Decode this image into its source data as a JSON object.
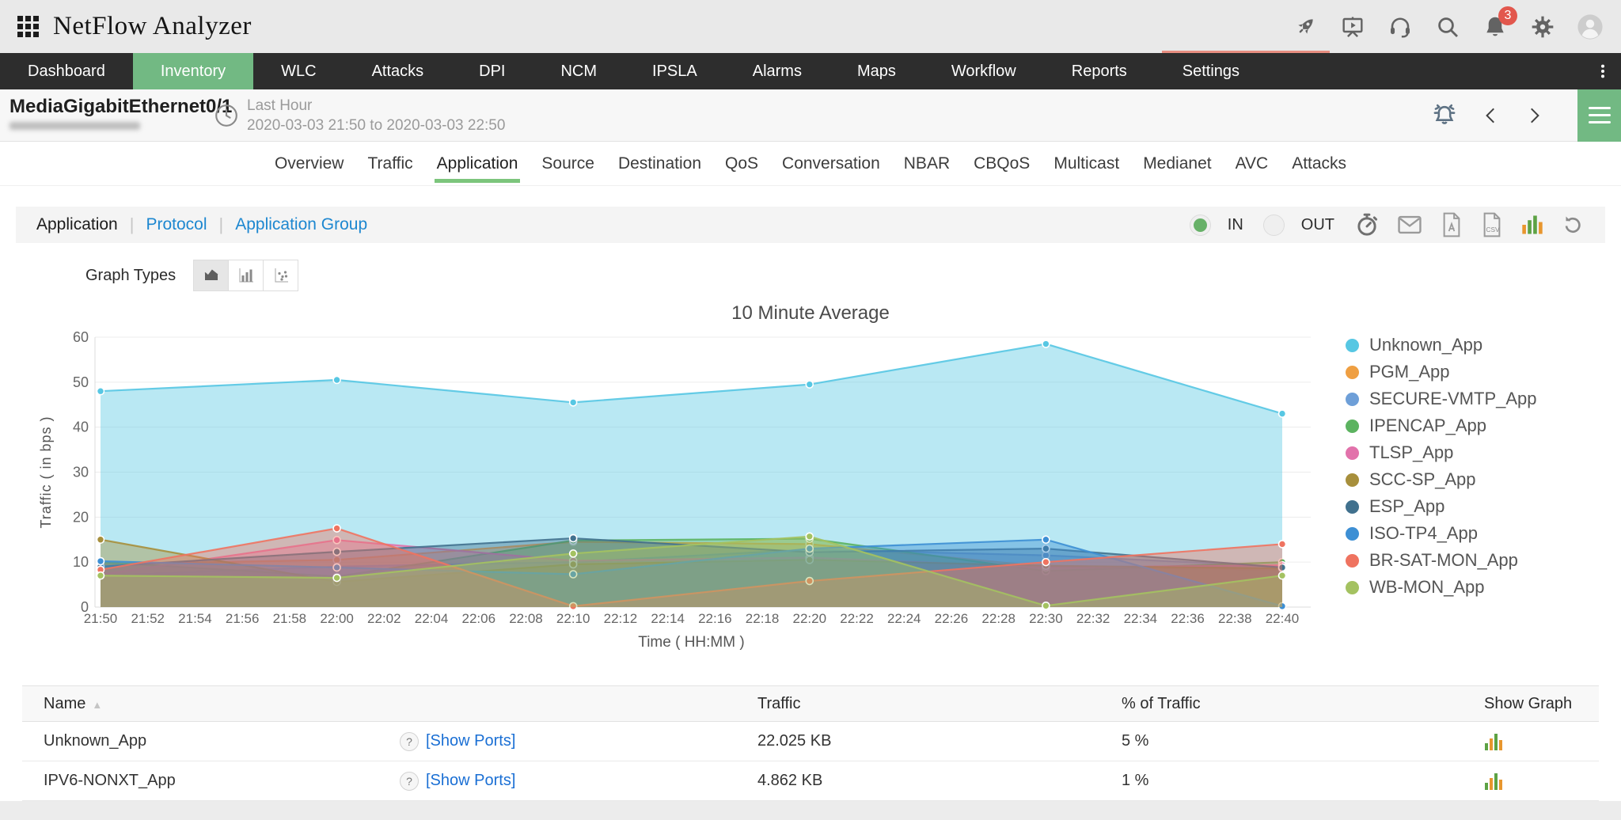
{
  "colors": {
    "accent_green": "#72b983",
    "underline_green": "#7cc57c",
    "link_blue": "#1d87d0",
    "badge_red": "#e2574d",
    "navbar_bg": "#2d2d2d"
  },
  "topbar": {
    "title": "NetFlow Analyzer",
    "notification_count": "3",
    "icons": [
      "apps-grid-icon",
      "rocket-icon",
      "presentation-icon",
      "support-headset-icon",
      "search-icon",
      "notifications-bell-icon",
      "settings-gear-icon",
      "user-avatar-icon"
    ]
  },
  "navbar": {
    "items": [
      "Dashboard",
      "Inventory",
      "WLC",
      "Attacks",
      "DPI",
      "NCM",
      "IPSLA",
      "Alarms",
      "Maps",
      "Workflow",
      "Reports",
      "Settings"
    ],
    "active": "Inventory",
    "more_icon": "kebab-menu-icon"
  },
  "interface_bar": {
    "title": "MediaGigabitEthernet0/1",
    "time_preset": "Last Hour",
    "time_range": "2020-03-03 21:50 to 2020-03-03 22:50",
    "icons": [
      "clock-icon",
      "alarm-ring-icon",
      "chevron-left-icon",
      "chevron-right-icon",
      "hamburger-menu-icon"
    ]
  },
  "subtabs": {
    "items": [
      "Overview",
      "Traffic",
      "Application",
      "Source",
      "Destination",
      "QoS",
      "Conversation",
      "NBAR",
      "CBQoS",
      "Multicast",
      "Medianet",
      "AVC",
      "Attacks"
    ],
    "active": "Application"
  },
  "filter_bar": {
    "views": [
      "Application",
      "Protocol",
      "Application Group"
    ],
    "active_view": "Application",
    "direction_in_label": "IN",
    "direction_out_label": "OUT",
    "selected_direction": "IN",
    "action_icons": [
      "timer-icon",
      "email-icon",
      "pdf-export-icon",
      "csv-export-icon",
      "chart-view-icon",
      "refresh-icon"
    ]
  },
  "graph_types": {
    "label": "Graph Types",
    "options": [
      "area-chart-icon",
      "bar-chart-icon",
      "scatter-chart-icon"
    ],
    "active_option": "area-chart-icon"
  },
  "chart_data": {
    "type": "area",
    "title": "10 Minute Average",
    "xlabel": "Time ( HH:MM )",
    "ylabel": "Traffic ( in bps )",
    "ylim": [
      0,
      60
    ],
    "yticks": [
      0,
      10,
      20,
      30,
      40,
      50,
      60
    ],
    "grid": true,
    "legend_position": "right",
    "xticks": [
      "21:50",
      "21:52",
      "21:54",
      "21:56",
      "21:58",
      "22:00",
      "22:02",
      "22:04",
      "22:06",
      "22:08",
      "22:10",
      "22:12",
      "22:14",
      "22:16",
      "22:18",
      "22:20",
      "22:22",
      "22:24",
      "22:26",
      "22:28",
      "22:30",
      "22:32",
      "22:34",
      "22:36",
      "22:38",
      "22:40"
    ],
    "x": [
      "21:50",
      "22:00",
      "22:10",
      "22:20",
      "22:30",
      "22:40"
    ],
    "series": [
      {
        "name": "Unknown_App",
        "color": "#57c7e3",
        "values": [
          48,
          50.5,
          45.5,
          49.5,
          58.5,
          43
        ]
      },
      {
        "name": "PGM_App",
        "color": "#ef9f42",
        "values": [
          9.5,
          10.5,
          14.5,
          14,
          9,
          8.3
        ]
      },
      {
        "name": "SECURE-VMTP_App",
        "color": "#6e9fd8",
        "values": [
          7,
          9,
          10,
          12.8,
          11.5,
          9
        ]
      },
      {
        "name": "IPENCAP_App",
        "color": "#5cb360",
        "values": [
          10,
          6.8,
          14.8,
          15.2,
          8,
          10
        ]
      },
      {
        "name": "TLSP_App",
        "color": "#e272ab",
        "values": [
          7.2,
          14.9,
          10.3,
          11,
          8.8,
          9.3
        ]
      },
      {
        "name": "SCC-SP_App",
        "color": "#a78f3c",
        "values": [
          15,
          5.6,
          9.5,
          10.5,
          9.2,
          8.6
        ]
      },
      {
        "name": "ESP_App",
        "color": "#41718e",
        "values": [
          9,
          12.3,
          15.3,
          12.2,
          13,
          8.8
        ]
      },
      {
        "name": "ISO-TP4_App",
        "color": "#3d8fd4",
        "values": [
          10.2,
          8.8,
          7.3,
          13,
          15,
          0.2
        ]
      },
      {
        "name": "BR-SAT-MON_App",
        "color": "#ef7360",
        "values": [
          8.3,
          17.5,
          0.2,
          5.8,
          10,
          14
        ]
      },
      {
        "name": "WB-MON_App",
        "color": "#a4c261",
        "values": [
          7,
          6.5,
          11.9,
          15.7,
          0.3,
          7
        ]
      }
    ]
  },
  "table": {
    "columns": [
      "Name",
      "Traffic",
      "% of Traffic",
      "Show Graph"
    ],
    "help_symbol": "?",
    "show_ports_label": "Show Ports",
    "rows": [
      {
        "name": "Unknown_App",
        "traffic": "22.025 KB",
        "percent": "5 %"
      },
      {
        "name": "IPV6-NONXT_App",
        "traffic": "4.862 KB",
        "percent": "1 %"
      }
    ]
  }
}
